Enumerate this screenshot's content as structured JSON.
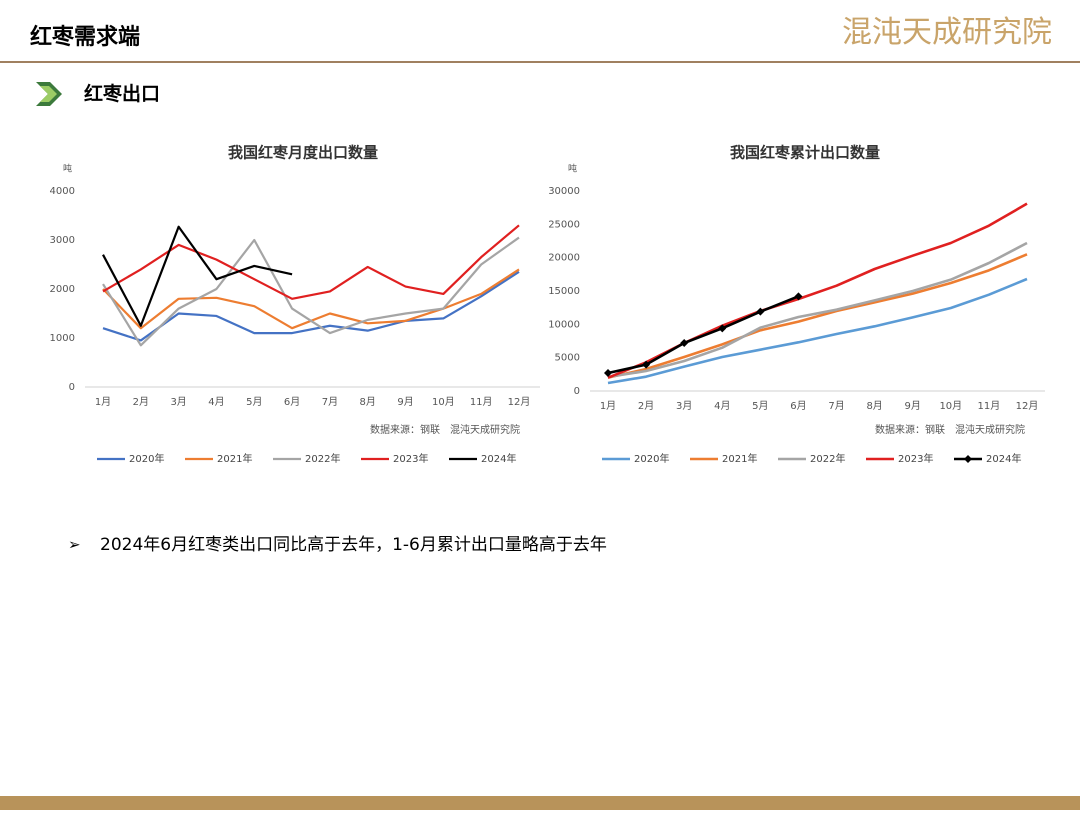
{
  "header": {
    "title": "红枣需求端",
    "logo": "混沌天成研究院"
  },
  "section": "红枣出口",
  "bullet": "2024年6月红枣类出口同比高于去年，1-6月累计出口量略高于去年",
  "chart_data": [
    {
      "type": "line",
      "title": "我国红枣月度出口数量",
      "y_label": "吨",
      "source": "数据来源：钢联　混沌天成研究院",
      "categories": [
        "1月",
        "2月",
        "3月",
        "4月",
        "5月",
        "6月",
        "7月",
        "8月",
        "9月",
        "10月",
        "11月",
        "12月"
      ],
      "ylim": [
        0,
        4000
      ],
      "yticks": [
        0,
        1000,
        2000,
        3000,
        4000
      ],
      "legend": "bottom",
      "series": [
        {
          "name": "2020年",
          "color": "#4472c4",
          "values": [
            1200,
            950,
            1500,
            1450,
            1100,
            1100,
            1250,
            1150,
            1350,
            1400,
            1850,
            2350
          ]
        },
        {
          "name": "2021年",
          "color": "#ed7d31",
          "values": [
            2000,
            1200,
            1800,
            1820,
            1650,
            1200,
            1500,
            1300,
            1350,
            1600,
            1900,
            2400
          ]
        },
        {
          "name": "2022年",
          "color": "#a5a5a5",
          "values": [
            2100,
            850,
            1600,
            2000,
            3000,
            1600,
            1100,
            1370,
            1500,
            1600,
            2500,
            3050
          ]
        },
        {
          "name": "2023年",
          "color": "#e02020",
          "values": [
            1950,
            2400,
            2900,
            2600,
            2200,
            1800,
            1950,
            2450,
            2050,
            1900,
            2650,
            3300
          ]
        },
        {
          "name": "2024年",
          "color": "#000000",
          "values": [
            2700,
            1250,
            3270,
            2200,
            2470,
            2300,
            null,
            null,
            null,
            null,
            null,
            null
          ]
        }
      ]
    },
    {
      "type": "line",
      "title": "我国红枣累计出口数量",
      "y_label": "吨",
      "source": "数据来源：钢联　混沌天成研究院",
      "categories": [
        "1月",
        "2月",
        "3月",
        "4月",
        "5月",
        "6月",
        "7月",
        "8月",
        "9月",
        "10月",
        "11月",
        "12月"
      ],
      "ylim": [
        0,
        30000
      ],
      "yticks": [
        0,
        5000,
        10000,
        15000,
        20000,
        25000,
        30000
      ],
      "legend": "bottom",
      "series": [
        {
          "name": "2020年",
          "color": "#5b9bd5",
          "values": [
            1200,
            2150,
            3650,
            5100,
            6200,
            7300,
            8550,
            9700,
            11050,
            12450,
            14450,
            16800
          ]
        },
        {
          "name": "2021年",
          "color": "#ed7d31",
          "values": [
            2000,
            3300,
            5100,
            7000,
            9100,
            10400,
            12000,
            13300,
            14600,
            16200,
            18100,
            20500
          ]
        },
        {
          "name": "2022年",
          "color": "#a5a5a5",
          "values": [
            2100,
            3000,
            4500,
            6500,
            9500,
            11100,
            12200,
            13600,
            15000,
            16700,
            19200,
            22200
          ]
        },
        {
          "name": "2023年",
          "color": "#e02020",
          "values": [
            2000,
            4300,
            7200,
            9800,
            12000,
            13800,
            15800,
            18300,
            20300,
            22200,
            24800,
            28100
          ]
        },
        {
          "name": "2024年",
          "color": "#000000",
          "marker": "diamond",
          "values": [
            2700,
            3950,
            7200,
            9400,
            11900,
            14200,
            null,
            null,
            null,
            null,
            null,
            null
          ]
        }
      ]
    }
  ]
}
